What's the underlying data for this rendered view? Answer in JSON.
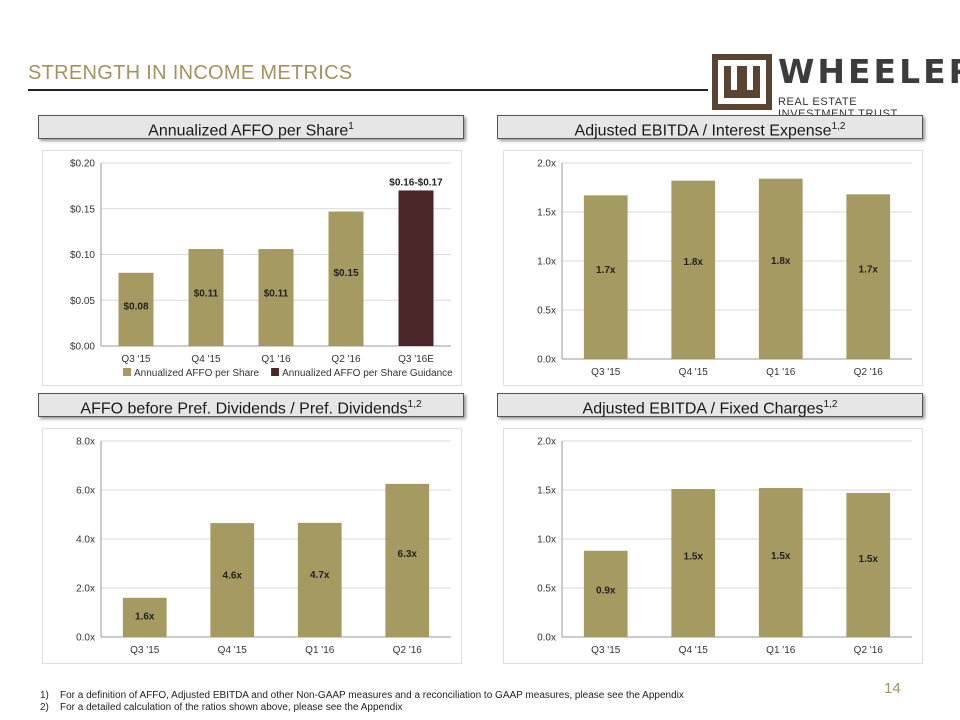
{
  "page": {
    "title": "STRENGTH IN INCOME METRICS",
    "page_number": "14",
    "logo": {
      "name": "WHEELER",
      "subtitle": "REAL ESTATE INVESTMENT TRUST"
    },
    "footnotes": [
      {
        "num": "1)",
        "text": "For a definition of AFFO, Adjusted EBITDA and other Non-GAAP measures and a reconciliation to GAAP measures, please see the Appendix"
      },
      {
        "num": "2)",
        "text": "For a detailed calculation of the ratios shown above, please see the Appendix"
      }
    ]
  },
  "headers": {
    "affo": {
      "text": "Annualized AFFO per Share",
      "sup": "1"
    },
    "ebitda_interest": {
      "text": "Adjusted EBITDA / Interest Expense",
      "sup": "1,2"
    },
    "affo_pref": {
      "text": "AFFO before Pref. Dividends / Pref. Dividends",
      "sup": "1,2"
    },
    "ebitda_fixed": {
      "text": "Adjusted EBITDA / Fixed Charges",
      "sup": "1,2"
    }
  },
  "colors": {
    "bar": "#a69a63",
    "guidance": "#4a2628",
    "title": "#a4935e",
    "grid": "#d9d9d9"
  },
  "chart_data": [
    {
      "id": "affo",
      "type": "bar",
      "title": "Annualized AFFO per Share",
      "categories": [
        "Q3 '15",
        "Q4 '15",
        "Q1 '16",
        "Q2 '16",
        "Q3 '16E"
      ],
      "values": [
        0.08,
        0.106,
        0.106,
        0.147,
        0.17
      ],
      "labels": [
        "$0.08",
        "$0.11",
        "$0.11",
        "$0.15",
        "$0.16-$0.17"
      ],
      "series_index": [
        0,
        0,
        0,
        0,
        1
      ],
      "series": [
        {
          "name": "Annualized AFFO per Share"
        },
        {
          "name": "Annualized AFFO per Share Guidance"
        }
      ],
      "yticks": [
        0,
        0.05,
        0.1,
        0.15,
        0.2
      ],
      "ytick_labels": [
        "$0.00",
        "$0.05",
        "$0.10",
        "$0.15",
        "$0.20"
      ],
      "ylim": [
        0,
        0.2
      ]
    },
    {
      "id": "ebitda_interest",
      "type": "bar",
      "title": "Adjusted EBITDA / Interest Expense",
      "categories": [
        "Q3 '15",
        "Q4 '15",
        "Q1 '16",
        "Q2 '16"
      ],
      "values": [
        1.67,
        1.82,
        1.84,
        1.68
      ],
      "labels": [
        "1.7x",
        "1.8x",
        "1.8x",
        "1.7x"
      ],
      "yticks": [
        0,
        0.5,
        1.0,
        1.5,
        2.0
      ],
      "ytick_labels": [
        "0.0x",
        "0.5x",
        "1.0x",
        "1.5x",
        "2.0x"
      ],
      "ylim": [
        0,
        2.0
      ]
    },
    {
      "id": "affo_pref",
      "type": "bar",
      "title": "AFFO before Pref. Dividends / Pref. Dividends",
      "categories": [
        "Q3 '15",
        "Q4 '15",
        "Q1 '16",
        "Q2 '16"
      ],
      "values": [
        1.6,
        4.65,
        4.66,
        6.25
      ],
      "labels": [
        "1.6x",
        "4.6x",
        "4.7x",
        "6.3x"
      ],
      "yticks": [
        0,
        2,
        4,
        6,
        8
      ],
      "ytick_labels": [
        "0.0x",
        "2.0x",
        "4.0x",
        "6.0x",
        "8.0x"
      ],
      "ylim": [
        0,
        8.0
      ]
    },
    {
      "id": "ebitda_fixed",
      "type": "bar",
      "title": "Adjusted EBITDA / Fixed Charges",
      "categories": [
        "Q3 '15",
        "Q4 '15",
        "Q1 '16",
        "Q2 '16"
      ],
      "values": [
        0.88,
        1.51,
        1.52,
        1.47
      ],
      "labels": [
        "0.9x",
        "1.5x",
        "1.5x",
        "1.5x"
      ],
      "yticks": [
        0,
        0.5,
        1.0,
        1.5,
        2.0
      ],
      "ytick_labels": [
        "0.0x",
        "0.5x",
        "1.0x",
        "1.5x",
        "2.0x"
      ],
      "ylim": [
        0,
        2.0
      ]
    }
  ]
}
